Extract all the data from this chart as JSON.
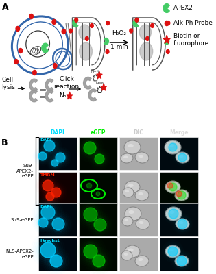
{
  "panel_a_label": "A",
  "panel_b_label": "B",
  "bg_color": "#ffffff",
  "gray_color": "#999999",
  "red_color": "#dd1111",
  "green_color": "#44cc66",
  "blue_cell": "#3366aa",
  "h2o2_text": "H₂O₂",
  "min_text": "1 min",
  "cell_lysis_label": "Cell\nlysis",
  "click_reaction_label": "Click\nreaction",
  "n3_label": "N₃",
  "row_labels": [
    "Su9-\nAPEX2-\neGFP",
    "Su9-eGFP",
    "NLS-APEX2-\neGFP"
  ],
  "col_labels": [
    "DAPI",
    "eGFP",
    "DIC",
    "Merge"
  ],
  "stain_labels": [
    "DAPI",
    "TMRM",
    "DAPI",
    "Hoechst"
  ],
  "stain_colors": [
    "#00ddff",
    "#ff2200",
    "#00ddff",
    "#00ddff"
  ]
}
